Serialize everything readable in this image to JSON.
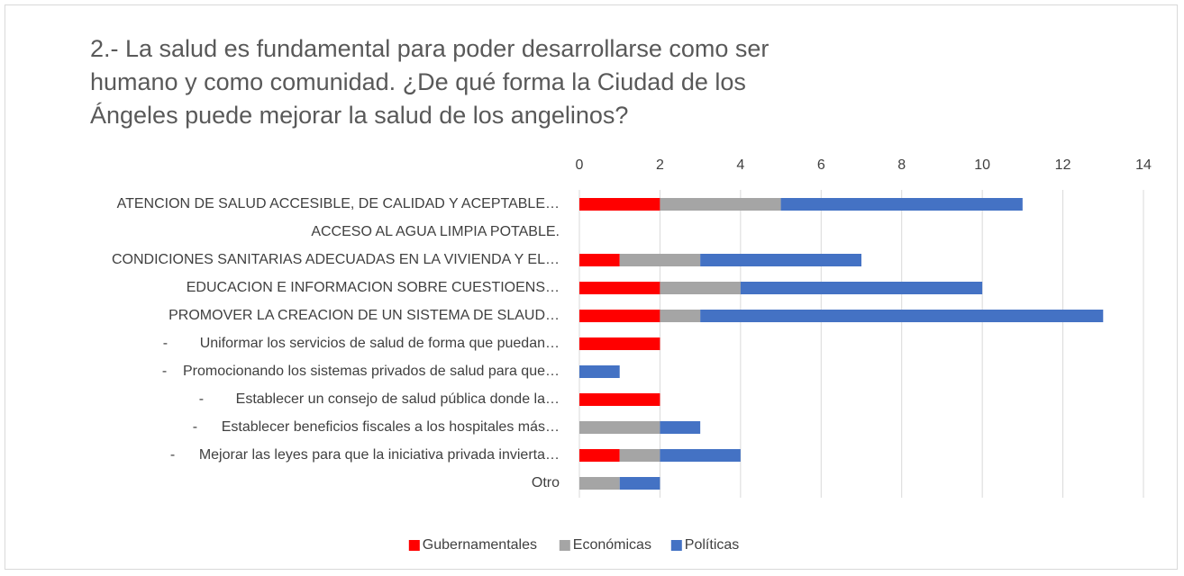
{
  "chart_data": {
    "type": "stacked-barh",
    "title": "2.- La salud es fundamental para poder desarrollarse como ser humano y como comunidad. ¿De qué forma la Ciudad de los Ángeles puede mejorar la salud de los angelinos?",
    "categories": [
      "ATENCION DE SALUD ACCESIBLE, DE CALIDAD Y ACEPTABLE…",
      "ACCESO AL AGUA LIMPIA POTABLE.",
      "CONDICIONES SANITARIAS ADECUADAS EN LA VIVIENDA Y EL…",
      "EDUCACION E INFORMACION SOBRE CUESTIOENS…",
      "PROMOVER LA CREACION DE UN SISTEMA DE SLAUD…",
      "-        Uniformar los servicios de salud de forma que puedan…",
      "-    Promocionando los sistemas privados de salud para que…",
      "-        Establecer un consejo de salud pública donde la…",
      "-      Establecer beneficios fiscales a los hospitales más…",
      "-      Mejorar las leyes para que la iniciativa privada invierta…",
      "Otro"
    ],
    "series": [
      {
        "name": "Gubernamentales",
        "color": "#ff0000",
        "values": [
          2,
          0,
          1,
          2,
          2,
          2,
          0,
          2,
          0,
          1,
          0
        ]
      },
      {
        "name": "Económicas",
        "color": "#a5a5a5",
        "values": [
          3,
          0,
          2,
          2,
          1,
          0,
          0,
          0,
          2,
          1,
          1
        ]
      },
      {
        "name": "Políticas",
        "color": "#4472c4",
        "values": [
          6,
          0,
          4,
          6,
          10,
          0,
          1,
          0,
          1,
          2,
          1
        ]
      }
    ],
    "xlim": [
      0,
      14
    ],
    "xticks": [
      0,
      2,
      4,
      6,
      8,
      10,
      12,
      14
    ],
    "grid": true,
    "legend": "bottom"
  }
}
